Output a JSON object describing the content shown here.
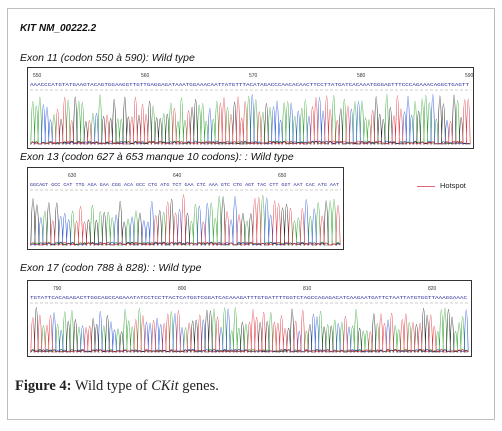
{
  "gene_title": "KIT NM_00222.2",
  "exons": [
    {
      "label": "Exon 11 (codon 550 à 590): Wild type",
      "tick_labels": [
        "550",
        "560",
        "570",
        "580",
        "590"
      ],
      "sequence": "AAACCCATGTATGAAGTACAGTGGAAGGTTGTTGAGGAGATAAATGGAAACAATTATGTTTACATAGACCCAACACAACTTCCTTATGATCACAAATGGGAGTTTCCCAGAAACAGGCTGAGTT"
    },
    {
      "label": "Exon 13 (codon 627 à 653 manque 10 codons): : Wild type",
      "tick_labels": [
        "630",
        "640",
        "650"
      ],
      "sequence": "GGCAGT GCC CAT TTG AGA GAA CGG ACA GCC CTG ATG TCT GAA CTC AAA GTC CTG AGT TAC CTT GGT AAT CAC ATG AAT"
    },
    {
      "label": "Exon 17 (codon 788 à 828): : Wild type",
      "tick_labels": [
        "790",
        "800",
        "810",
        "820"
      ],
      "sequence": "TGTATTCACAGAGACTTGGCAGCCAGAAATATCCTCCTTACTCATGGTCGGATCACAAAGATTTGTGATTTTGGTCTAGCCAGAGACATCAAGAATGATTCTAATTATGTGGTTAAAGGAAAC"
    }
  ],
  "legend": {
    "label": "Hotspot",
    "color": "#e06377"
  },
  "caption": {
    "prefix": "Figure 4:",
    "text_before": " Wild type of ",
    "italic": "CKit",
    "text_after": " genes."
  },
  "trace_colors": {
    "A": "#2ca02c",
    "C": "#1f4fd6",
    "G": "#222222",
    "T": "#e0303a"
  }
}
